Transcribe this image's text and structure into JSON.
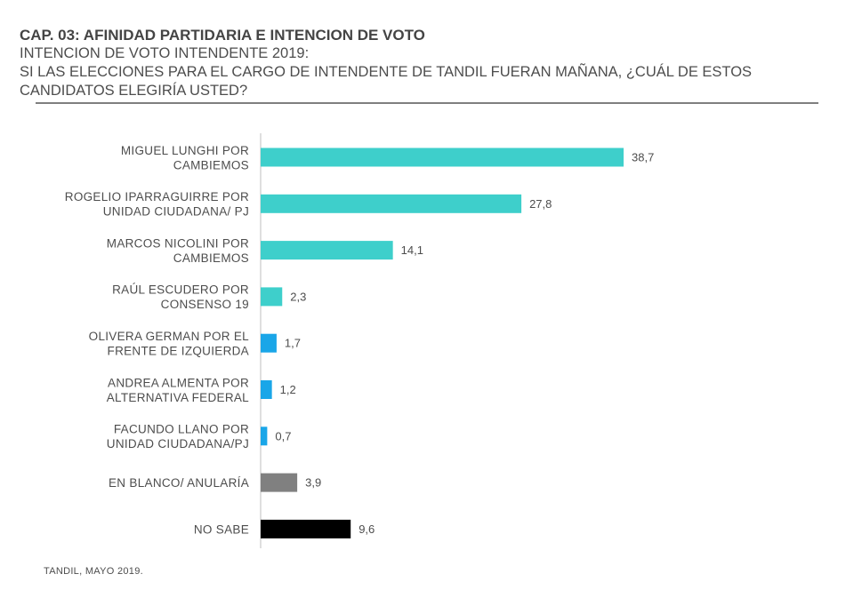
{
  "header": {
    "chapter": "CAP. 03: AFINIDAD PARTIDARIA E INTENCION DE VOTO",
    "subtitle_line1": "INTENCION DE VOTO INTENDENTE 2019:",
    "subtitle_line2": "SI LAS ELECCIONES PARA EL CARGO DE INTENDENTE DE TANDIL FUERAN MAÑANA, ¿CUÁL DE ESTOS",
    "subtitle_line3": "CANDIDATOS ELEGIRÍA USTED?"
  },
  "footer": {
    "source": "TANDIL, MAYO 2019."
  },
  "colors": {
    "teal": "#3ecfcb",
    "blue": "#1aa6e8",
    "gray": "#808080",
    "black": "#000000",
    "axis": "#bfbfbf"
  },
  "chart_data": {
    "type": "bar",
    "orientation": "horizontal",
    "title": "",
    "xlabel": "",
    "ylabel": "",
    "grid": false,
    "categories": [
      [
        "MIGUEL LUNGHI POR",
        "CAMBIEMOS"
      ],
      [
        "ROGELIO IPARRAGUIRRE POR",
        "UNIDAD CIUDADANA/ PJ"
      ],
      [
        "MARCOS NICOLINI POR",
        "CAMBIEMOS"
      ],
      [
        "RAÚL ESCUDERO POR",
        "CONSENSO 19"
      ],
      [
        "OLIVERA GERMAN POR EL",
        "FRENTE DE IZQUIERDA"
      ],
      [
        "ANDREA ALMENTA POR",
        "ALTERNATIVA FEDERAL"
      ],
      [
        "FACUNDO LLANO POR",
        "UNIDAD CIUDADANA/PJ"
      ],
      [
        "EN BLANCO/ ANULARÍA"
      ],
      [
        "NO SABE"
      ]
    ],
    "values": [
      38.7,
      27.8,
      14.1,
      2.3,
      1.7,
      1.2,
      0.7,
      3.9,
      9.6
    ],
    "value_labels": [
      "38,7",
      "27,8",
      "14,1",
      "2,3",
      "1,7",
      "1,2",
      "0,7",
      "3,9",
      "9,6"
    ],
    "bar_colors": [
      "teal",
      "teal",
      "teal",
      "teal",
      "blue",
      "blue",
      "blue",
      "gray",
      "black"
    ]
  }
}
